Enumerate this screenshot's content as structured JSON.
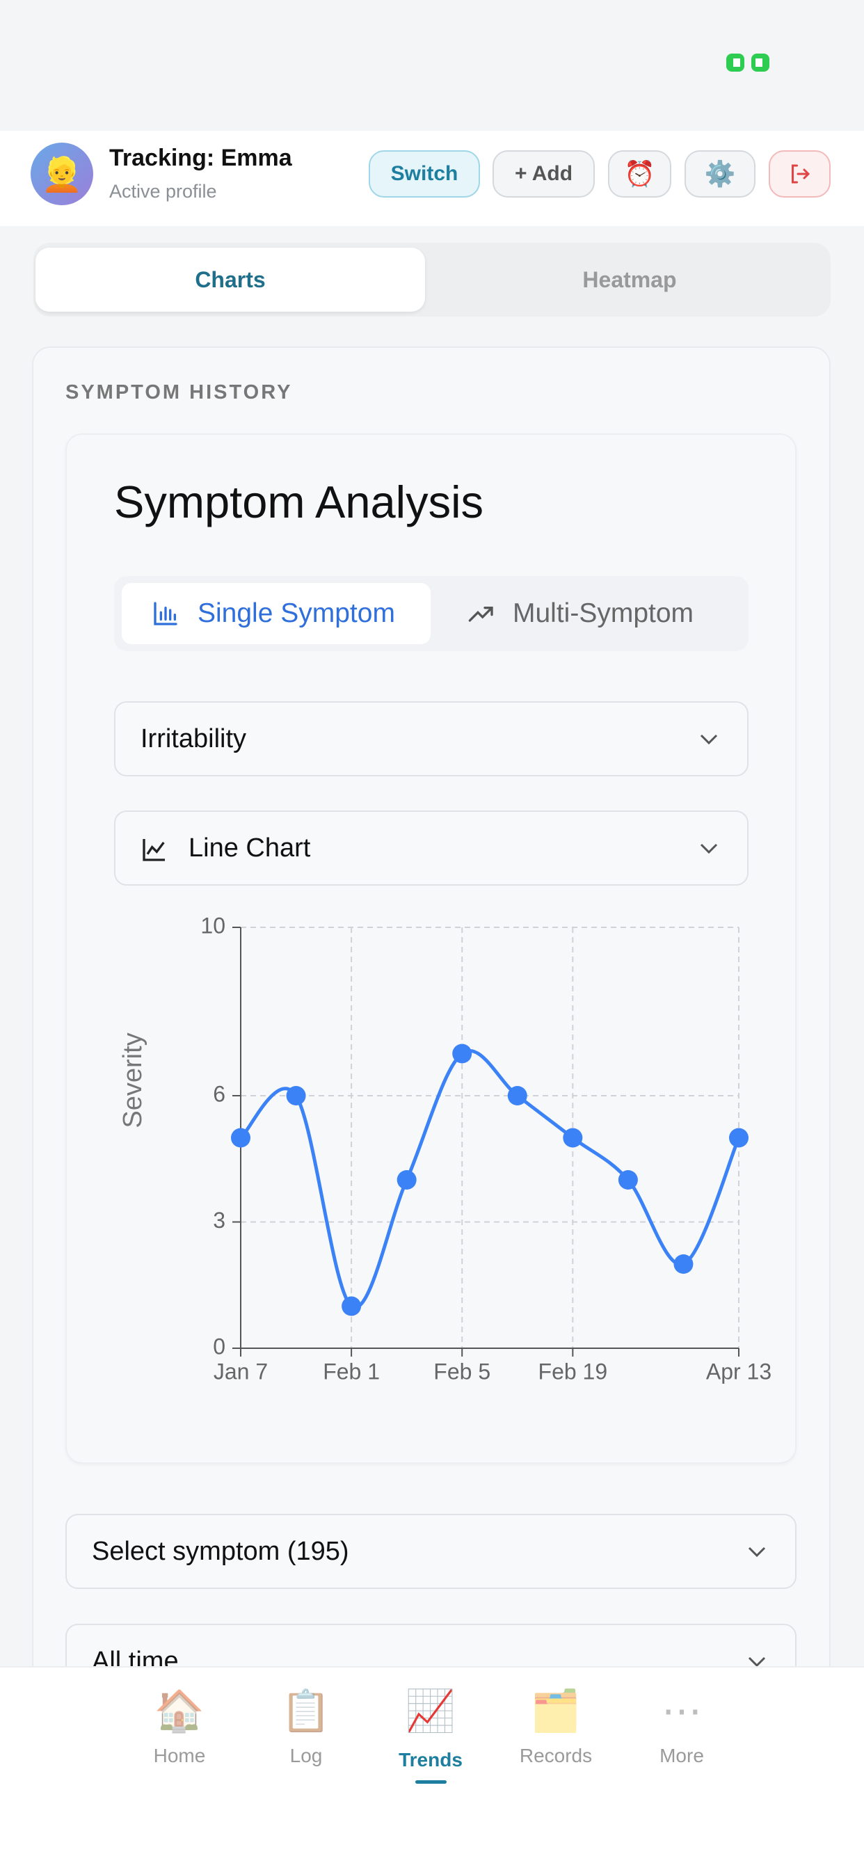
{
  "header": {
    "avatar": "👱",
    "title": "Tracking: Emma",
    "subtitle": "Active profile",
    "buttons": [
      "Switch",
      "+ Add",
      "⏰",
      "⚙️"
    ]
  },
  "tabs": [
    "Charts",
    "Heatmap"
  ],
  "section": {
    "label": "SYMPTOM HISTORY",
    "title": "Symptom Analysis",
    "modes": [
      "Single Symptom",
      "Multi-Symptom"
    ],
    "symptom_select": "Irritability",
    "chart_select": "Line Chart"
  },
  "chart_data": {
    "type": "line",
    "y_label": "Severity",
    "categories": [
      "Jan 7",
      null,
      "Feb 1",
      null,
      "Feb 5",
      null,
      "Feb 19",
      null,
      null,
      "Apr 13"
    ],
    "values": [
      5,
      6,
      1,
      4,
      7,
      6,
      5,
      4,
      2,
      5
    ],
    "color": "#3b82f6",
    "ylim": [
      0,
      10
    ],
    "yticks": [
      0,
      3,
      6,
      10
    ],
    "grid": true
  },
  "filters": [
    "Select symptom (195)",
    "All time"
  ],
  "nav": [
    {
      "icon": "🏠",
      "label": "Home"
    },
    {
      "icon": "📋",
      "label": "Log"
    },
    {
      "icon": "📈",
      "label": "Trends"
    },
    {
      "icon": "🗂️",
      "label": "Records"
    },
    {
      "icon": "⋯",
      "label": "More"
    }
  ]
}
